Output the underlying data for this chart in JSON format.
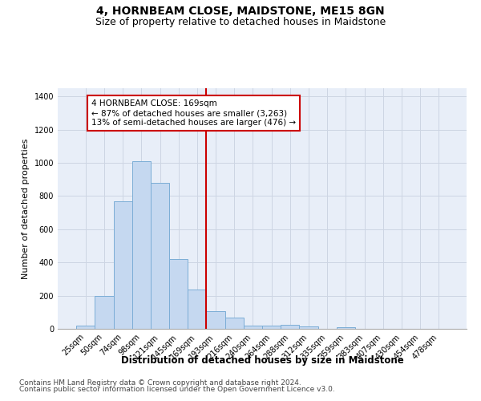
{
  "title": "4, HORNBEAM CLOSE, MAIDSTONE, ME15 8GN",
  "subtitle": "Size of property relative to detached houses in Maidstone",
  "xlabel": "Distribution of detached houses by size in Maidstone",
  "ylabel": "Number of detached properties",
  "categories": [
    "25sqm",
    "50sqm",
    "74sqm",
    "98sqm",
    "121sqm",
    "145sqm",
    "169sqm",
    "193sqm",
    "216sqm",
    "240sqm",
    "264sqm",
    "288sqm",
    "312sqm",
    "335sqm",
    "359sqm",
    "383sqm",
    "407sqm",
    "430sqm",
    "454sqm",
    "478sqm"
  ],
  "bar_heights": [
    20,
    200,
    770,
    1010,
    880,
    420,
    235,
    108,
    68,
    20,
    20,
    25,
    13,
    0,
    10,
    0,
    0,
    0,
    0,
    0
  ],
  "bar_color": "#c5d8f0",
  "bar_edge_color": "#7badd6",
  "vline_color": "#cc0000",
  "annotation_text": "4 HORNBEAM CLOSE: 169sqm\n← 87% of detached houses are smaller (3,263)\n13% of semi-detached houses are larger (476) →",
  "annotation_box_color": "#ffffff",
  "annotation_edge_color": "#cc0000",
  "ylim": [
    0,
    1450
  ],
  "yticks": [
    0,
    200,
    400,
    600,
    800,
    1000,
    1200,
    1400
  ],
  "grid_color": "#cdd5e3",
  "background_color": "#e8eef8",
  "footer_line1": "Contains HM Land Registry data © Crown copyright and database right 2024.",
  "footer_line2": "Contains public sector information licensed under the Open Government Licence v3.0.",
  "title_fontsize": 10,
  "subtitle_fontsize": 9,
  "xlabel_fontsize": 8.5,
  "ylabel_fontsize": 8,
  "tick_fontsize": 7,
  "annotation_fontsize": 7.5,
  "footer_fontsize": 6.5
}
